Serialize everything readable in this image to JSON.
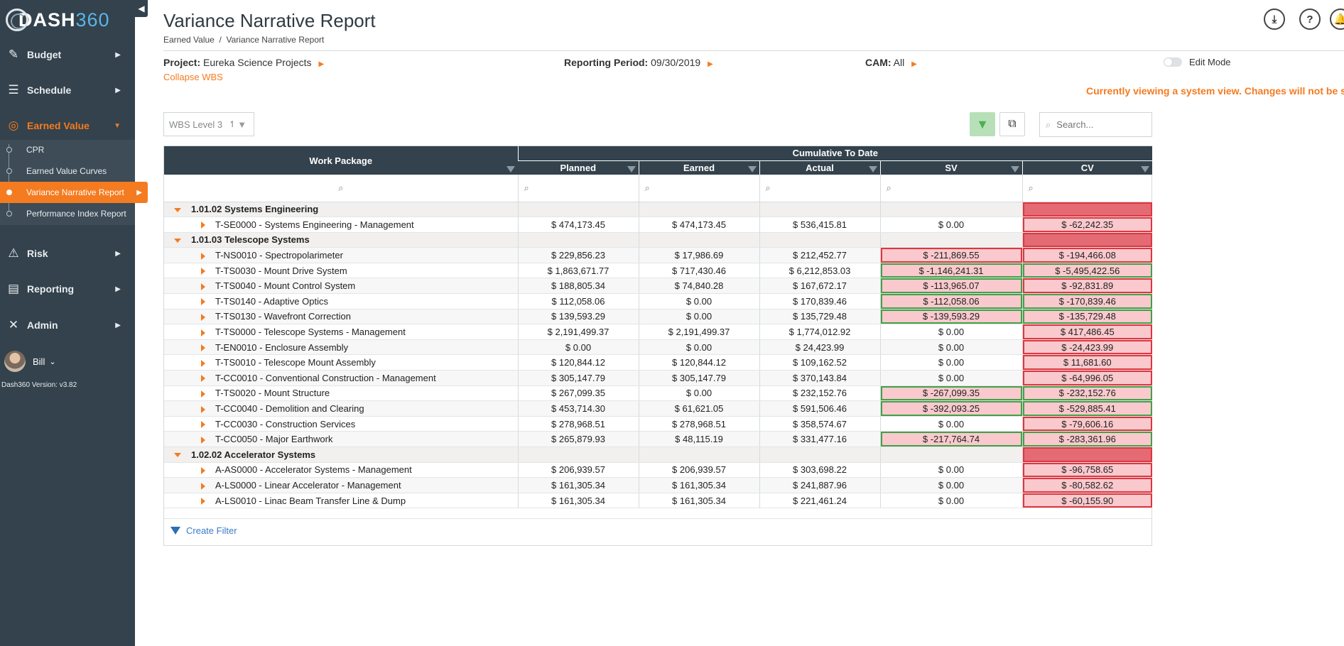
{
  "app": {
    "logo_text": "DASH360",
    "version": "Dash360 Version: v3.82",
    "user": "Bill"
  },
  "sidebar": {
    "items": [
      {
        "label": "Budget",
        "icon": "edit-icon"
      },
      {
        "label": "Schedule",
        "icon": "list-icon"
      },
      {
        "label": "Earned Value",
        "icon": "target-icon",
        "active": true
      },
      {
        "label": "Risk",
        "icon": "warning-icon"
      },
      {
        "label": "Reporting",
        "icon": "report-icon"
      },
      {
        "label": "Admin",
        "icon": "tools-icon"
      }
    ],
    "sub_items": [
      {
        "label": "CPR"
      },
      {
        "label": "Earned Value Curves"
      },
      {
        "label": "Variance Narrative Report",
        "active": true
      },
      {
        "label": "Performance Index Report"
      }
    ]
  },
  "header": {
    "title": "Variance Narrative Report",
    "breadcrumb": "Earned Value  /  Variance Narrative Report",
    "icons": [
      "download-icon",
      "help-icon",
      "bell-icon"
    ]
  },
  "filters": {
    "project_label": "Project:",
    "project_value": "Eureka Science Projects",
    "period_label": "Reporting Period:",
    "period_value": "09/30/2019",
    "cam_label": "CAM:",
    "cam_value": "All",
    "collapse_wbs": "Collapse WBS",
    "edit_mode": "Edit Mode",
    "warning": "Currently viewing a system view. Changes will not be saved"
  },
  "toolbar": {
    "wbs_level": "WBS Level 3",
    "search_placeholder": "Search..."
  },
  "grid": {
    "col_work_package": "Work Package",
    "group_header": "Cumulative To Date",
    "col_planned": "Planned",
    "col_earned": "Earned",
    "col_actual": "Actual",
    "col_sv": "SV",
    "col_cv": "CV",
    "rows": [
      {
        "type": "group",
        "name": "1.01.02 Systems Engineering",
        "cv_flag": "group-bad"
      },
      {
        "type": "item",
        "name": "T-SE0000 - Systems Engineering - Management",
        "planned": "$ 474,173.45",
        "earned": "$ 474,173.45",
        "actual": "$ 536,415.81",
        "sv": "$ 0.00",
        "cv": "$ -62,242.35",
        "sv_flag": "",
        "cv_flag": "bad"
      },
      {
        "type": "group",
        "name": "1.01.03 Telescope Systems",
        "cv_flag": "group-bad"
      },
      {
        "type": "item",
        "name": "T-NS0010 - Spectropolarimeter",
        "planned": "$ 229,856.23",
        "earned": "$ 17,986.69",
        "actual": "$ 212,452.77",
        "sv": "$ -211,869.55",
        "cv": "$ -194,466.08",
        "sv_flag": "bad-red",
        "cv_flag": "bad"
      },
      {
        "type": "item",
        "name": "T-TS0030 - Mount Drive System",
        "planned": "$ 1,863,671.77",
        "earned": "$ 717,430.46",
        "actual": "$ 6,212,853.03",
        "sv": "$ -1,146,241.31",
        "cv": "$ -5,495,422.56",
        "sv_flag": "bad",
        "cv_flag": "green"
      },
      {
        "type": "item",
        "name": "T-TS0040 - Mount Control System",
        "planned": "$ 188,805.34",
        "earned": "$ 74,840.28",
        "actual": "$ 167,672.17",
        "sv": "$ -113,965.07",
        "cv": "$ -92,831.89",
        "sv_flag": "bad",
        "cv_flag": "bad"
      },
      {
        "type": "item",
        "name": "T-TS0140 - Adaptive Optics",
        "planned": "$ 112,058.06",
        "earned": "$ 0.00",
        "actual": "$ 170,839.46",
        "sv": "$ -112,058.06",
        "cv": "$ -170,839.46",
        "sv_flag": "bad",
        "cv_flag": "green"
      },
      {
        "type": "item",
        "name": "T-TS0130 - Wavefront Correction",
        "planned": "$ 139,593.29",
        "earned": "$ 0.00",
        "actual": "$ 135,729.48",
        "sv": "$ -139,593.29",
        "cv": "$ -135,729.48",
        "sv_flag": "bad",
        "cv_flag": "green"
      },
      {
        "type": "item",
        "name": "T-TS0000 - Telescope Systems - Management",
        "planned": "$ 2,191,499.37",
        "earned": "$ 2,191,499.37",
        "actual": "$ 1,774,012.92",
        "sv": "$ 0.00",
        "cv": "$ 417,486.45",
        "sv_flag": "",
        "cv_flag": "bad"
      },
      {
        "type": "item",
        "name": "T-EN0010 - Enclosure Assembly",
        "planned": "$ 0.00",
        "earned": "$ 0.00",
        "actual": "$ 24,423.99",
        "sv": "$ 0.00",
        "cv": "$ -24,423.99",
        "sv_flag": "",
        "cv_flag": "bad"
      },
      {
        "type": "item",
        "name": "T-TS0010 - Telescope Mount Assembly",
        "planned": "$ 120,844.12",
        "earned": "$ 120,844.12",
        "actual": "$ 109,162.52",
        "sv": "$ 0.00",
        "cv": "$ 11,681.60",
        "sv_flag": "",
        "cv_flag": "bad"
      },
      {
        "type": "item",
        "name": "T-CC0010 - Conventional Construction - Management",
        "planned": "$ 305,147.79",
        "earned": "$ 305,147.79",
        "actual": "$ 370,143.84",
        "sv": "$ 0.00",
        "cv": "$ -64,996.05",
        "sv_flag": "",
        "cv_flag": "bad"
      },
      {
        "type": "item",
        "name": "T-TS0020 - Mount Structure",
        "planned": "$ 267,099.35",
        "earned": "$ 0.00",
        "actual": "$ 232,152.76",
        "sv": "$ -267,099.35",
        "cv": "$ -232,152.76",
        "sv_flag": "bad",
        "cv_flag": "green"
      },
      {
        "type": "item",
        "name": "T-CC0040 - Demolition and Clearing",
        "planned": "$ 453,714.30",
        "earned": "$ 61,621.05",
        "actual": "$ 591,506.46",
        "sv": "$ -392,093.25",
        "cv": "$ -529,885.41",
        "sv_flag": "bad",
        "cv_flag": "green"
      },
      {
        "type": "item",
        "name": "T-CC0030 - Construction Services",
        "planned": "$ 278,968.51",
        "earned": "$ 278,968.51",
        "actual": "$ 358,574.67",
        "sv": "$ 0.00",
        "cv": "$ -79,606.16",
        "sv_flag": "",
        "cv_flag": "bad"
      },
      {
        "type": "item",
        "name": "T-CC0050 - Major Earthwork",
        "planned": "$ 265,879.93",
        "earned": "$ 48,115.19",
        "actual": "$ 331,477.16",
        "sv": "$ -217,764.74",
        "cv": "$ -283,361.96",
        "sv_flag": "bad",
        "cv_flag": "green"
      },
      {
        "type": "group",
        "name": "1.02.02 Accelerator Systems",
        "cv_flag": "group-bad"
      },
      {
        "type": "item",
        "name": "A-AS0000 - Accelerator Systems - Management",
        "planned": "$ 206,939.57",
        "earned": "$ 206,939.57",
        "actual": "$ 303,698.22",
        "sv": "$ 0.00",
        "cv": "$ -96,758.65",
        "sv_flag": "",
        "cv_flag": "bad"
      },
      {
        "type": "item",
        "name": "A-LS0000 - Linear Accelerator - Management",
        "planned": "$ 161,305.34",
        "earned": "$ 161,305.34",
        "actual": "$ 241,887.96",
        "sv": "$ 0.00",
        "cv": "$ -80,582.62",
        "sv_flag": "",
        "cv_flag": "bad"
      },
      {
        "type": "item",
        "name": "A-LS0010 - Linac Beam Transfer Line & Dump",
        "planned": "$ 161,305.34",
        "earned": "$ 161,305.34",
        "actual": "$ 221,461.24",
        "sv": "$ 0.00",
        "cv": "$ -60,155.90",
        "sv_flag": "",
        "cv_flag": "bad"
      }
    ],
    "create_filter": "Create Filter"
  },
  "colors": {
    "accent": "#f47b20",
    "sidebar": "#33424c",
    "flag_red": "#e0353f",
    "flag_green": "#43a047",
    "flag_fill": "#f9c9cd"
  }
}
